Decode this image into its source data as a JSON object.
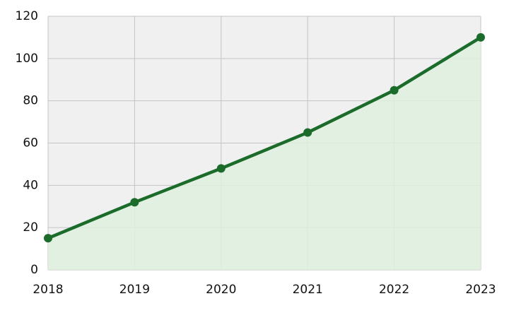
{
  "chart_data": {
    "type": "line",
    "x": [
      2018,
      2019,
      2020,
      2021,
      2022,
      2023
    ],
    "series": [
      {
        "color": "#1b6b2b",
        "values": [
          15,
          32,
          48,
          65,
          85,
          110
        ]
      }
    ],
    "area_fill": "#dff0df",
    "xlim": [
      2018,
      2023
    ],
    "xticks": [
      2018,
      2019,
      2020,
      2021,
      2022,
      2023
    ],
    "ylim": [
      0,
      120
    ],
    "yticks": [
      0,
      20,
      40,
      60,
      80,
      100,
      120
    ],
    "grid": true
  }
}
